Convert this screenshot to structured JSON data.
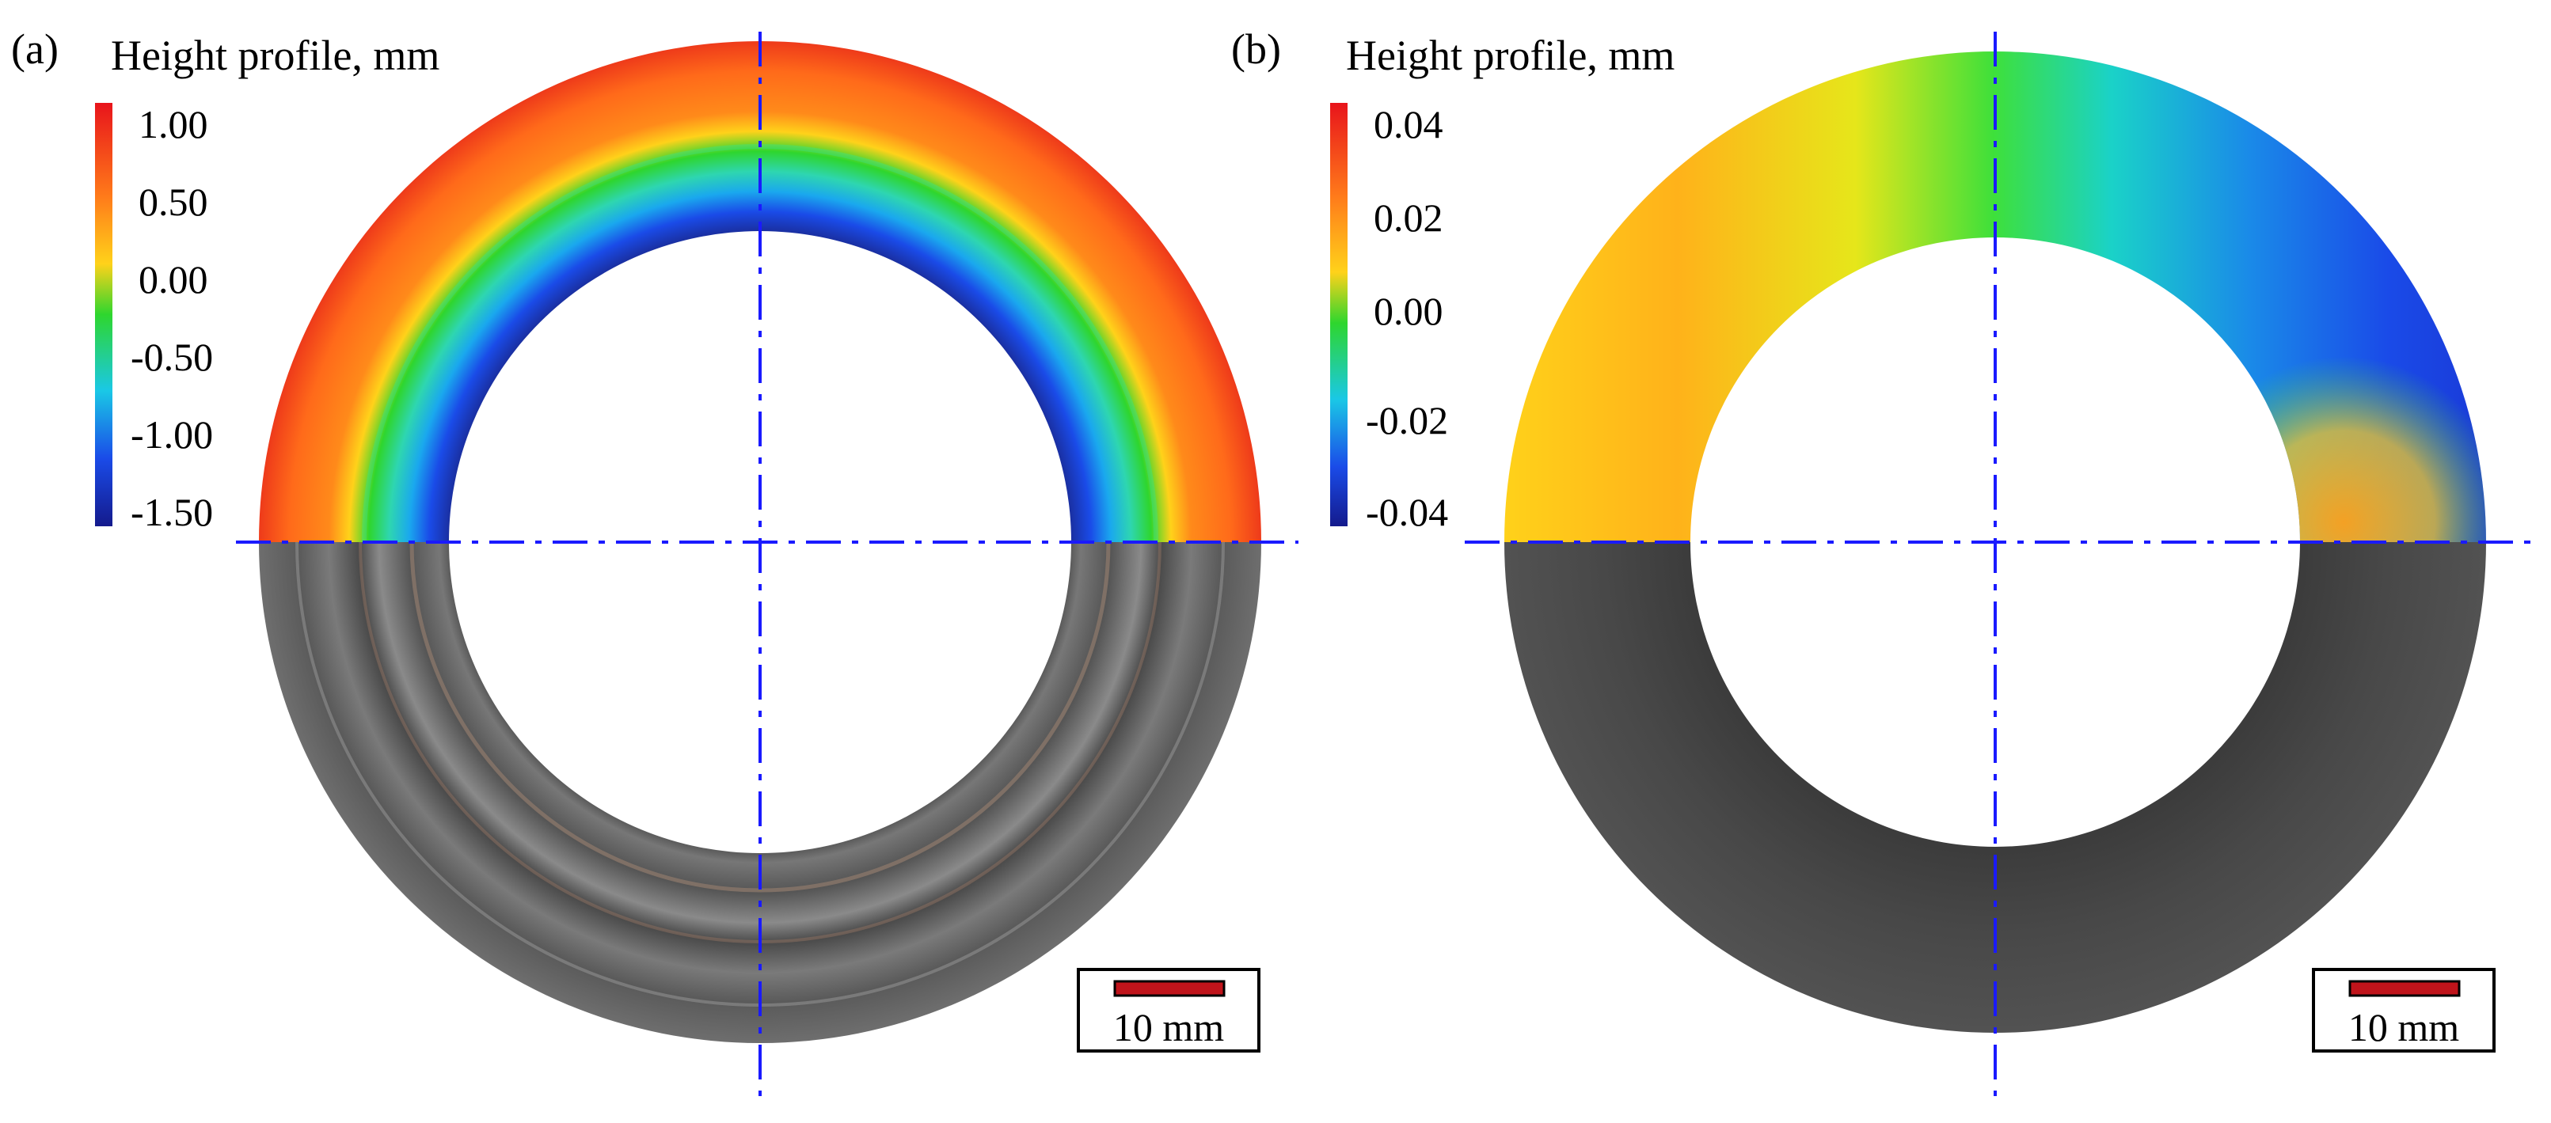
{
  "panels": [
    {
      "id": "a",
      "label": "(a)",
      "colorbar_title": "Height profile, mm",
      "colorbar_ticks": [
        "1.00",
        "0.50",
        "0.00",
        "-0.50",
        "-1.00",
        "-1.50"
      ],
      "scale_bar_label": "10 mm"
    },
    {
      "id": "b",
      "label": "(b)",
      "colorbar_title": "Height profile, mm",
      "colorbar_ticks": [
        "0.04",
        "0.02",
        "0.00",
        "-0.02",
        "-0.04"
      ],
      "scale_bar_label": "10 mm"
    }
  ],
  "colors": {
    "axis_lines": "#1a1aff",
    "colormap": [
      "#e8141b",
      "#ff7a1a",
      "#ffd21a",
      "#2ed62e",
      "#1ac8e6",
      "#1a4be8",
      "#141a8c"
    ],
    "metal": "#5a5a5a",
    "scale_bar": "#c0141b"
  }
}
